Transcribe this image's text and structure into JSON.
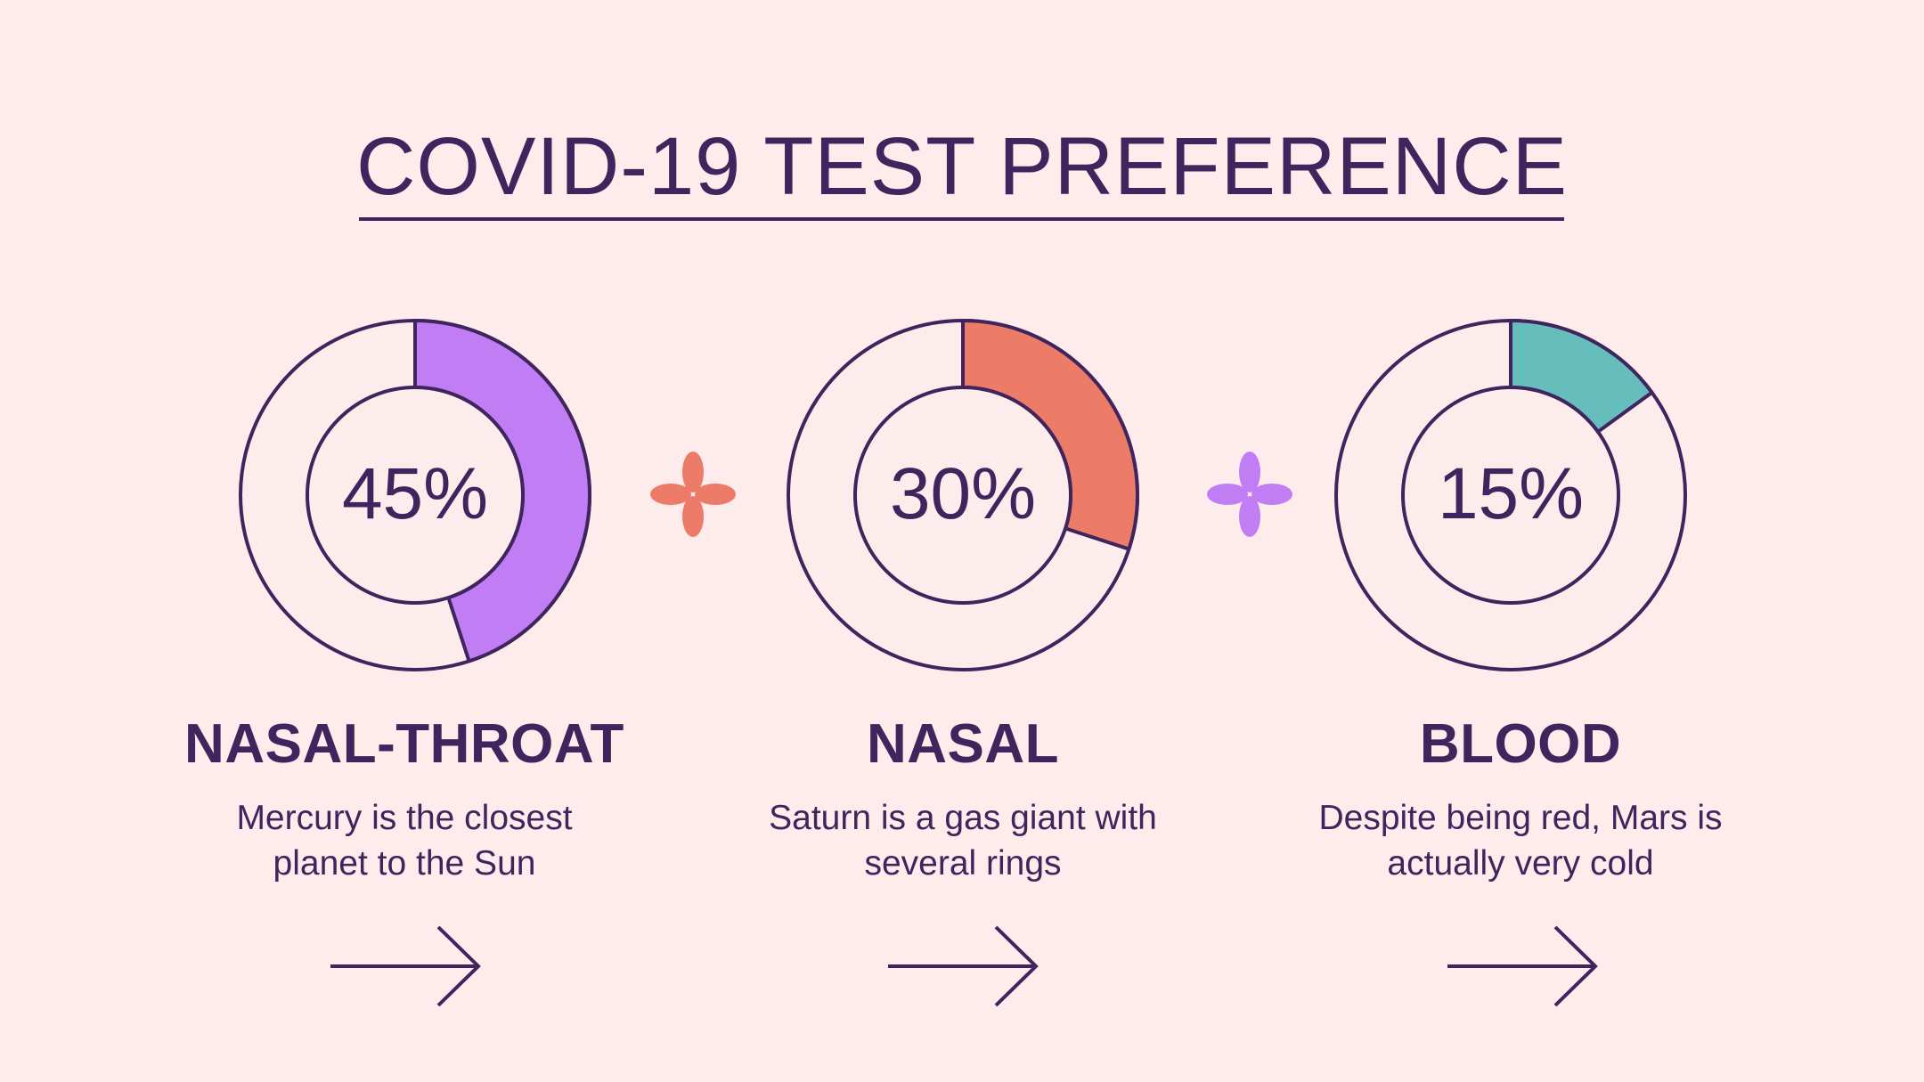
{
  "title": "COVID-19 TEST PREFERENCE",
  "colors": {
    "background": "#fdeceb",
    "ink": "#40245e",
    "ring_fill": "#fdecec",
    "purple": "#c17ef4",
    "coral": "#ec7b68",
    "teal": "#65bebc"
  },
  "chart_data": [
    {
      "type": "pie",
      "label": "NASAL-THROAT",
      "value": 45,
      "value_text": "45%",
      "color": "#c17ef4"
    },
    {
      "type": "pie",
      "label": "NASAL",
      "value": 30,
      "value_text": "30%",
      "color": "#ec7b68"
    },
    {
      "type": "pie",
      "label": "BLOOD",
      "value": 15,
      "value_text": "15%",
      "color": "#65bebc"
    }
  ],
  "cards": [
    {
      "description_line1": "Mercury is the closest",
      "description_line2": "planet to the Sun",
      "arrow_icon": "arrow-right-icon"
    },
    {
      "description_line1": "Saturn is a gas giant with",
      "description_line2": "several rings",
      "arrow_icon": "arrow-right-icon"
    },
    {
      "description_line1": "Despite being red, Mars is",
      "description_line2": "actually very cold",
      "arrow_icon": "arrow-right-icon"
    }
  ],
  "separators": [
    {
      "icon": "flower-icon",
      "color": "#ec7b68"
    },
    {
      "icon": "flower-icon",
      "color": "#c17ef4"
    }
  ]
}
